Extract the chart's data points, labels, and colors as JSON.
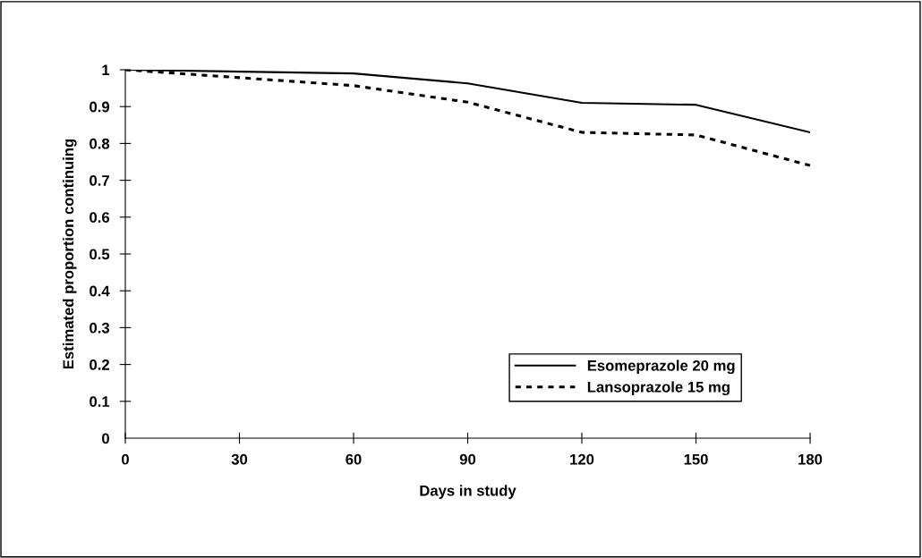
{
  "chart_data": {
    "type": "line",
    "xlabel": "Days in study",
    "ylabel": "Estimated proportion continuing",
    "x": [
      0,
      60,
      90,
      120,
      150,
      180
    ],
    "series": [
      {
        "name": "Esomeprazole 20 mg",
        "color": "#000000",
        "line_style": "solid",
        "values": [
          1,
          0.99,
          0.963,
          0.91,
          0.905,
          0.83
        ]
      },
      {
        "name": "Lansoprazole 15 mg",
        "color": "#000000",
        "line_style": "dotted",
        "values": [
          1,
          0.957,
          0.912,
          0.83,
          0.823,
          0.74
        ]
      }
    ],
    "xlim": [
      0,
      180
    ],
    "xticks": [
      0,
      30,
      60,
      90,
      120,
      150,
      180
    ],
    "ylim": [
      0,
      1
    ],
    "yticks": [
      0,
      0.1,
      0.2,
      0.3,
      0.4,
      0.5,
      0.6,
      0.7,
      0.8,
      0.9,
      1
    ],
    "grid": false,
    "legend": "bottom right",
    "marker": "none"
  }
}
